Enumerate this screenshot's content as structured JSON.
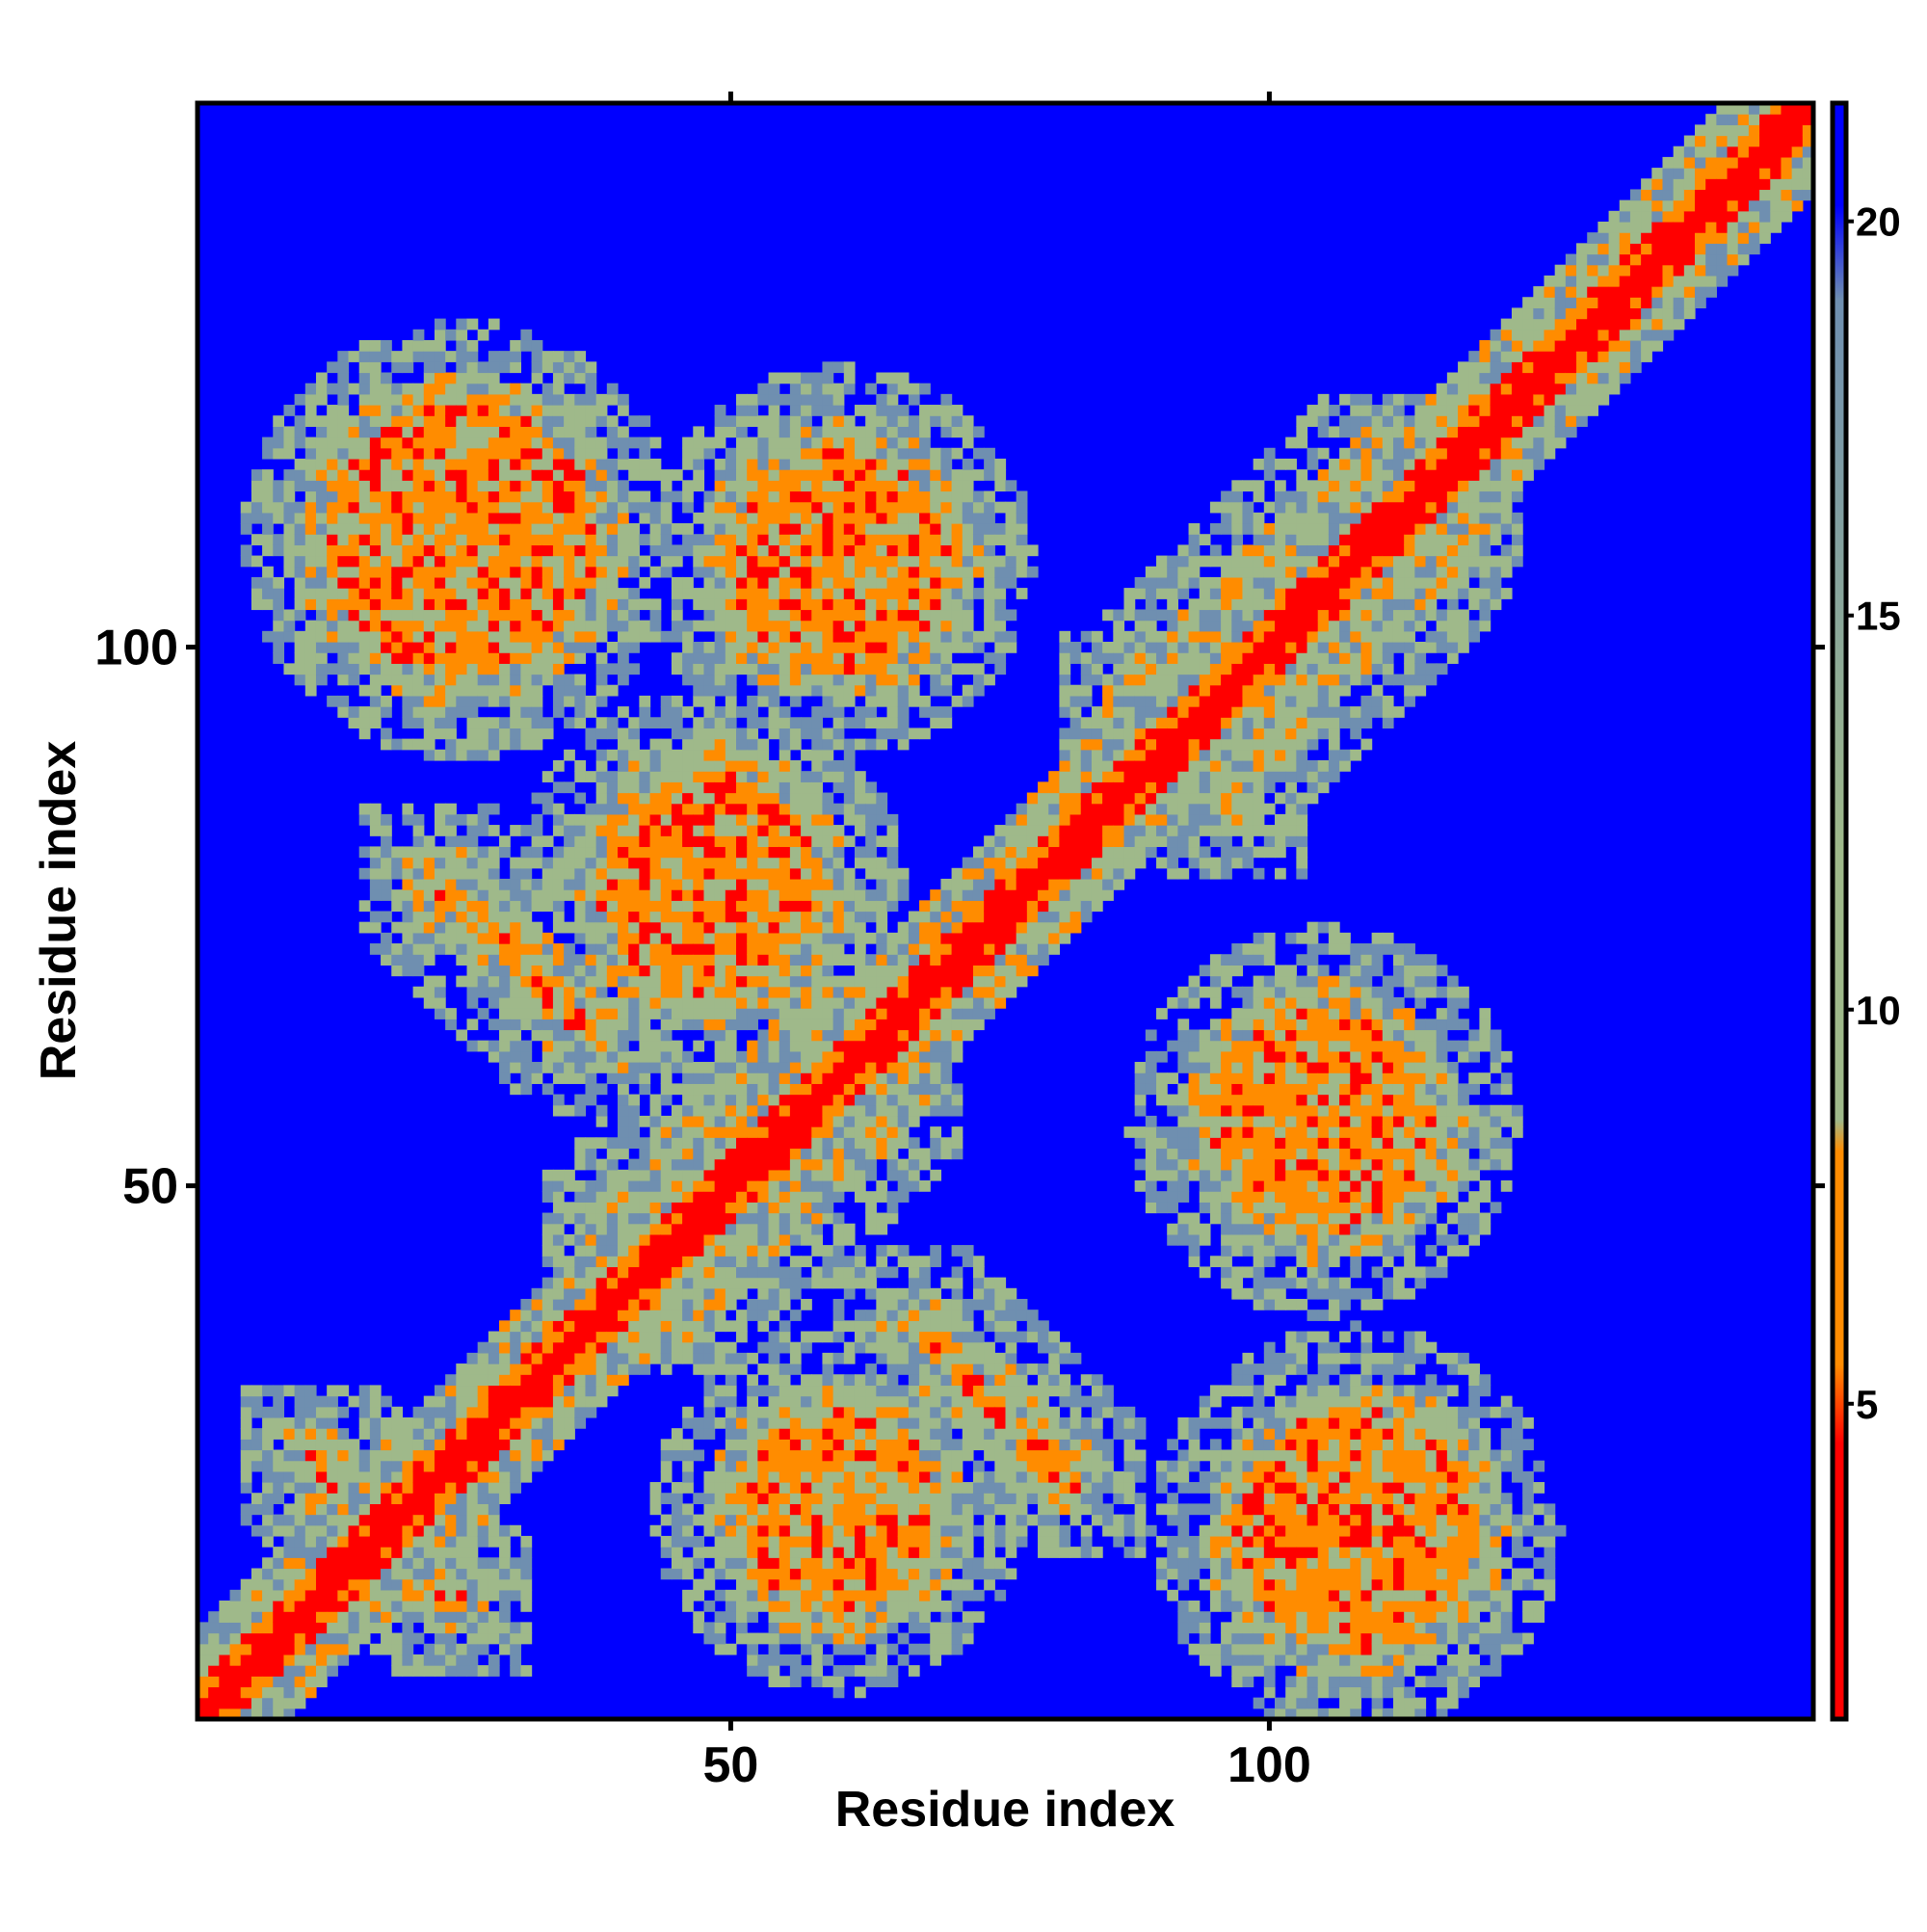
{
  "chart_data": {
    "type": "heatmap",
    "title": "",
    "xlabel": "Residue index",
    "ylabel": "Residue index",
    "xlim": [
      1,
      150
    ],
    "ylim": [
      1,
      150
    ],
    "x_ticks": [
      50,
      100
    ],
    "y_ticks": [
      50,
      100
    ],
    "colorbar": {
      "ticks": [
        5,
        10,
        15,
        20
      ],
      "range": [
        1,
        21.5
      ],
      "colors": {
        "near": "#ff0000",
        "contact": "#ff8c00",
        "mid": "#9fb98a",
        "far_mid": "#6f8fb0",
        "far": "#0000ff"
      },
      "orientation": "vertical",
      "position": "right"
    },
    "description_free_features": {
      "diagonal": "distance rises from ~1 on the diagonal to 21+ away from it",
      "secondary_contacts": [
        {
          "x": 18,
          "y": 18,
          "orientation": "anti-diagonal",
          "length": 20
        },
        {
          "x": 30,
          "y": 71,
          "orientation": "anti-diagonal",
          "length": 22
        },
        {
          "x": 74,
          "y": 30,
          "orientation": "anti-diagonal",
          "length": 22
        },
        {
          "x": 52,
          "y": 52,
          "orientation": "diagonal-band",
          "length": 30
        },
        {
          "x": 104,
          "y": 104,
          "orientation": "diagonal-band",
          "length": 30
        },
        {
          "x": 92,
          "y": 90,
          "orientation": "anti-diagonal",
          "length": 14
        },
        {
          "x": 48,
          "y": 78,
          "orientation": "patch",
          "length": 20
        },
        {
          "x": 25,
          "y": 110,
          "orientation": "patch",
          "length": 25
        },
        {
          "x": 60,
          "y": 108,
          "orientation": "patch",
          "length": 20
        },
        {
          "x": 105,
          "y": 56,
          "orientation": "patch",
          "length": 20
        },
        {
          "x": 108,
          "y": 18,
          "orientation": "patch",
          "length": 22
        },
        {
          "x": 60,
          "y": 20,
          "orientation": "patch",
          "length": 18
        }
      ]
    }
  }
}
